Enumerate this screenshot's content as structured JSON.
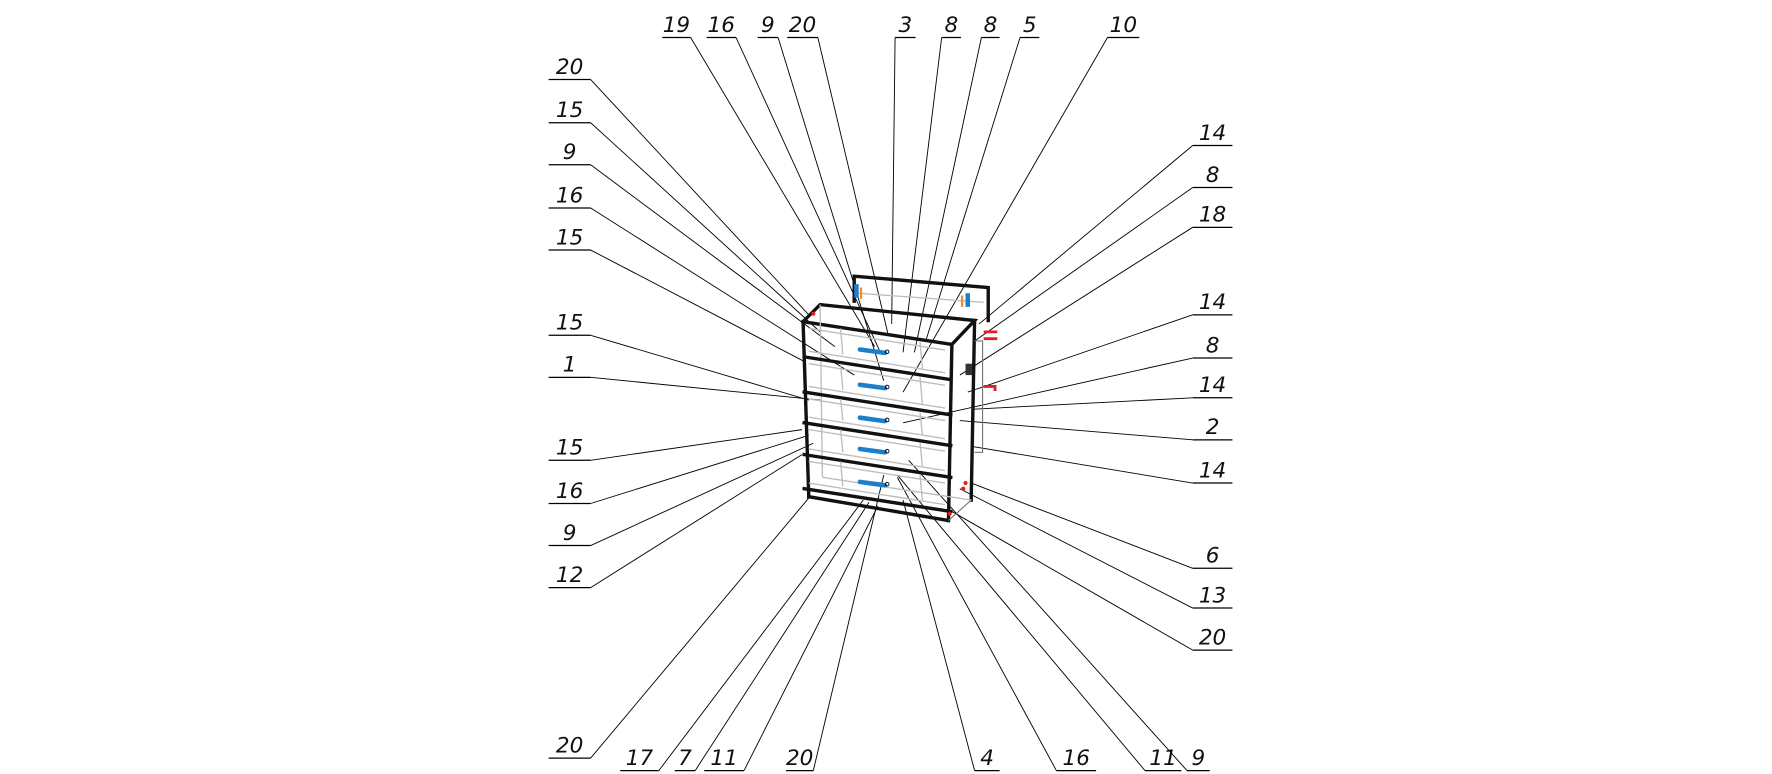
{
  "colors": {
    "handle": "#1e7fc9",
    "accent": "#f0902a",
    "marker": "#e02020",
    "line": "#000000"
  },
  "callouts": {
    "top": [
      "19",
      "16",
      "9",
      "20",
      "3",
      "8",
      "8",
      "5",
      "10"
    ],
    "left": [
      "20",
      "15",
      "9",
      "16",
      "15",
      "15",
      "1",
      "15",
      "16",
      "9",
      "12",
      "20"
    ],
    "bottom": [
      "17",
      "7",
      "11",
      "20",
      "4",
      "16",
      "11",
      "9"
    ],
    "right": [
      "14",
      "8",
      "18",
      "14",
      "8",
      "14",
      "2",
      "14",
      "6",
      "13",
      "20"
    ]
  }
}
